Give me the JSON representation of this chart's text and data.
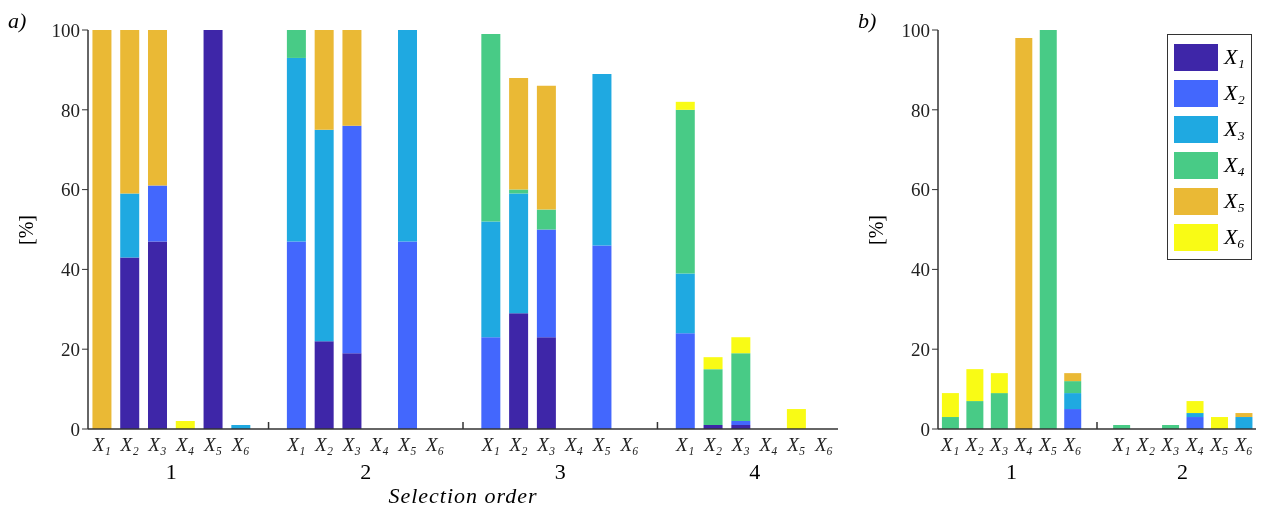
{
  "chart_data": [
    {
      "type": "bar",
      "title": "a)",
      "xlabel": "Selection order",
      "ylabel": "[%]",
      "stacked": true,
      "annotations": [
        "1",
        "2",
        "3",
        "4"
      ],
      "categories": [
        "X₁",
        "X₂",
        "X₃",
        "X₄",
        "X₅",
        "X₆",
        null,
        "X₁",
        "X₂",
        "X₃",
        "X₄",
        "X₅",
        "X₆",
        null,
        "X₁",
        "X₂",
        "X₃",
        "X₄",
        "X₅",
        "X₆",
        null,
        "X₁",
        "X₂",
        "X₃",
        "X₄",
        "X₅",
        "X₆"
      ],
      "series": [
        {
          "color": "#3e26a8",
          "values": [
            null,
            43,
            47,
            null,
            100,
            null,
            null,
            null,
            22,
            19,
            null,
            null,
            null,
            null,
            null,
            29,
            23,
            null,
            null,
            null,
            null,
            null,
            1,
            1,
            null,
            null,
            null
          ]
        },
        {
          "color": "#4367fd",
          "values": [
            null,
            null,
            14,
            null,
            null,
            null,
            null,
            47,
            null,
            57,
            null,
            47,
            null,
            null,
            23,
            null,
            27,
            null,
            46,
            null,
            null,
            24,
            null,
            1,
            null,
            null,
            null
          ]
        },
        {
          "color": "#1fa9e1",
          "values": [
            null,
            16,
            null,
            null,
            null,
            1,
            null,
            46,
            53,
            null,
            null,
            53,
            null,
            null,
            29,
            30,
            null,
            null,
            43,
            null,
            null,
            15,
            null,
            null,
            null,
            null,
            null
          ]
        },
        {
          "color": "#48cb86",
          "values": [
            null,
            null,
            null,
            null,
            null,
            null,
            null,
            7,
            null,
            null,
            null,
            null,
            null,
            null,
            47,
            1,
            5,
            null,
            null,
            null,
            null,
            41,
            14,
            17,
            null,
            null,
            null
          ]
        },
        {
          "color": "#eab935",
          "values": [
            100,
            41,
            39,
            null,
            null,
            null,
            null,
            null,
            25,
            24,
            null,
            null,
            null,
            null,
            null,
            28,
            31,
            null,
            null,
            null,
            null,
            null,
            null,
            null,
            null,
            null,
            null
          ]
        },
        {
          "color": "#f9fb15",
          "values": [
            null,
            null,
            null,
            2,
            null,
            null,
            null,
            null,
            null,
            null,
            null,
            null,
            null,
            null,
            null,
            null,
            null,
            null,
            null,
            null,
            null,
            2,
            3,
            4,
            null,
            5,
            null
          ]
        }
      ],
      "ylim": [
        0,
        100
      ],
      "yticks": [
        0,
        20,
        40,
        60,
        80,
        100
      ],
      "legend": false,
      "grid": false
    },
    {
      "type": "bar",
      "title": "b)",
      "ylabel": "[%]",
      "stacked": true,
      "annotations": [
        "1",
        "2"
      ],
      "categories": [
        "X₁",
        "X₂",
        "X₃",
        "X₄",
        "X₅",
        "X₆",
        null,
        "X₁",
        "X₂",
        "X₃",
        "X₄",
        "X₅",
        "X₆"
      ],
      "series": [
        {
          "name": "X₁",
          "color": "#3e26a8",
          "values": [
            null,
            null,
            null,
            null,
            null,
            null,
            null,
            null,
            null,
            null,
            null,
            null,
            null
          ]
        },
        {
          "name": "X₂",
          "color": "#4367fd",
          "values": [
            null,
            null,
            null,
            null,
            null,
            5,
            null,
            null,
            null,
            null,
            3,
            null,
            null
          ]
        },
        {
          "name": "X₃",
          "color": "#1fa9e1",
          "values": [
            null,
            null,
            null,
            null,
            null,
            4,
            null,
            null,
            null,
            null,
            1,
            null,
            3
          ]
        },
        {
          "name": "X₄",
          "color": "#48cb86",
          "values": [
            3,
            7,
            9,
            null,
            100,
            3,
            null,
            1,
            null,
            1,
            null,
            null,
            null
          ]
        },
        {
          "name": "X₅",
          "color": "#eab935",
          "values": [
            null,
            null,
            null,
            98,
            null,
            2,
            null,
            null,
            null,
            null,
            null,
            null,
            1
          ]
        },
        {
          "name": "X₆",
          "color": "#f9fb15",
          "values": [
            6,
            8,
            5,
            null,
            null,
            null,
            null,
            null,
            null,
            null,
            3,
            3,
            null
          ]
        }
      ],
      "ylim": [
        0,
        100
      ],
      "yticks": [
        0,
        20,
        40,
        60,
        80,
        100
      ],
      "legend": "top right",
      "grid": false
    }
  ]
}
